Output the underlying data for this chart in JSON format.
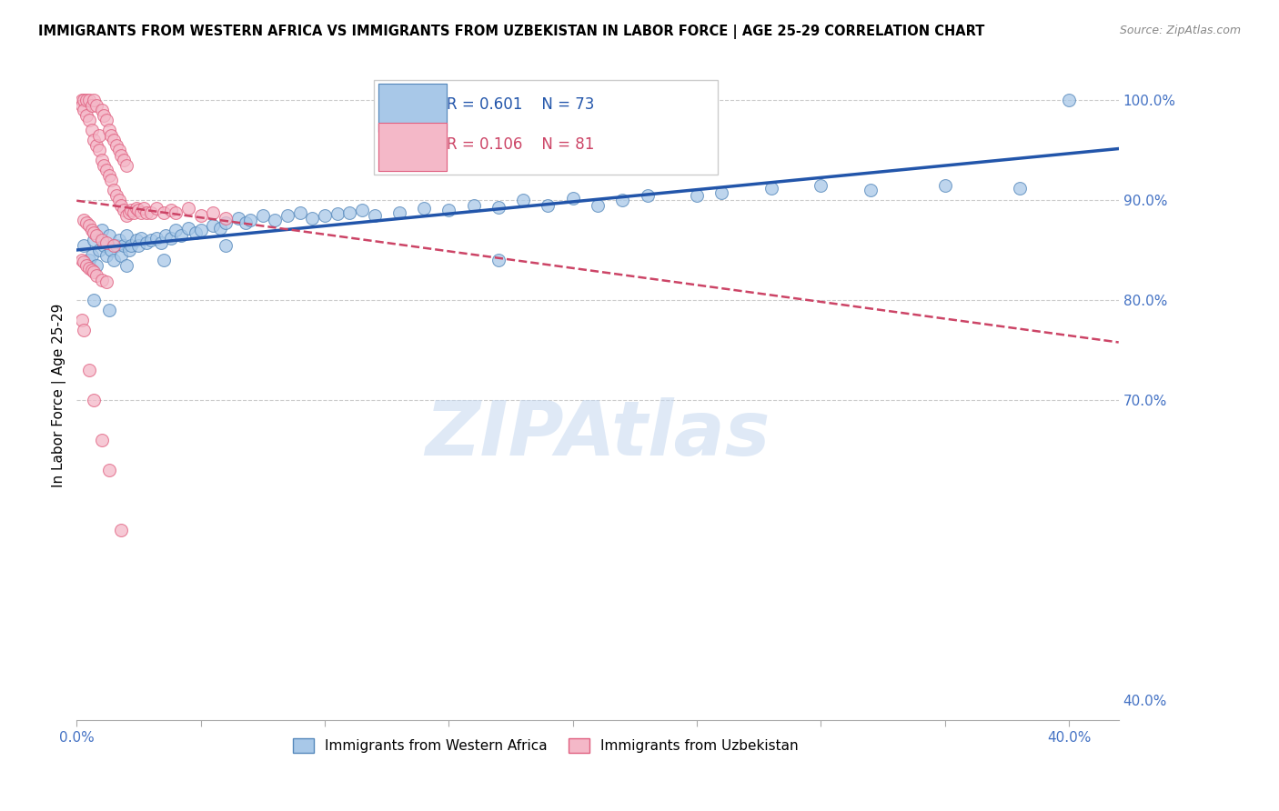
{
  "title": "IMMIGRANTS FROM WESTERN AFRICA VS IMMIGRANTS FROM UZBEKISTAN IN LABOR FORCE | AGE 25-29 CORRELATION CHART",
  "source": "Source: ZipAtlas.com",
  "ylabel": "In Labor Force | Age 25-29",
  "xlim": [
    0.0,
    0.42
  ],
  "ylim": [
    0.38,
    1.03
  ],
  "blue_color": "#a8c8e8",
  "pink_color": "#f4b8c8",
  "blue_edge_color": "#5588bb",
  "pink_edge_color": "#e06080",
  "blue_line_color": "#2255aa",
  "pink_line_color": "#cc4466",
  "tick_label_color": "#4472c4",
  "grid_color": "#cccccc",
  "watermark": "ZIPAtlas",
  "blue_scatter_x": [
    0.003,
    0.005,
    0.006,
    0.007,
    0.008,
    0.009,
    0.01,
    0.011,
    0.012,
    0.013,
    0.014,
    0.015,
    0.016,
    0.017,
    0.018,
    0.019,
    0.02,
    0.021,
    0.022,
    0.024,
    0.025,
    0.026,
    0.028,
    0.03,
    0.032,
    0.034,
    0.036,
    0.038,
    0.04,
    0.042,
    0.045,
    0.048,
    0.05,
    0.055,
    0.058,
    0.06,
    0.065,
    0.068,
    0.07,
    0.075,
    0.08,
    0.085,
    0.09,
    0.095,
    0.1,
    0.105,
    0.11,
    0.115,
    0.12,
    0.13,
    0.14,
    0.15,
    0.16,
    0.17,
    0.18,
    0.19,
    0.2,
    0.21,
    0.22,
    0.23,
    0.25,
    0.26,
    0.28,
    0.3,
    0.32,
    0.35,
    0.38,
    0.4,
    0.007,
    0.013,
    0.02,
    0.035,
    0.06,
    0.17
  ],
  "blue_scatter_y": [
    0.855,
    0.84,
    0.845,
    0.86,
    0.835,
    0.85,
    0.87,
    0.855,
    0.845,
    0.865,
    0.85,
    0.84,
    0.855,
    0.86,
    0.845,
    0.855,
    0.865,
    0.85,
    0.855,
    0.86,
    0.855,
    0.862,
    0.858,
    0.86,
    0.862,
    0.858,
    0.865,
    0.862,
    0.87,
    0.865,
    0.872,
    0.868,
    0.87,
    0.875,
    0.872,
    0.878,
    0.882,
    0.878,
    0.88,
    0.885,
    0.88,
    0.885,
    0.888,
    0.882,
    0.885,
    0.887,
    0.888,
    0.89,
    0.885,
    0.888,
    0.892,
    0.89,
    0.895,
    0.893,
    0.9,
    0.895,
    0.902,
    0.895,
    0.9,
    0.905,
    0.905,
    0.908,
    0.912,
    0.915,
    0.91,
    0.915,
    0.912,
    1.0,
    0.8,
    0.79,
    0.835,
    0.84,
    0.855,
    0.84
  ],
  "pink_scatter_x": [
    0.002,
    0.002,
    0.003,
    0.003,
    0.004,
    0.004,
    0.005,
    0.005,
    0.006,
    0.006,
    0.007,
    0.007,
    0.008,
    0.008,
    0.009,
    0.009,
    0.01,
    0.01,
    0.011,
    0.011,
    0.012,
    0.012,
    0.013,
    0.013,
    0.014,
    0.014,
    0.015,
    0.015,
    0.016,
    0.016,
    0.017,
    0.017,
    0.018,
    0.018,
    0.019,
    0.019,
    0.02,
    0.02,
    0.021,
    0.022,
    0.023,
    0.024,
    0.025,
    0.026,
    0.027,
    0.028,
    0.03,
    0.032,
    0.035,
    0.038,
    0.04,
    0.045,
    0.05,
    0.055,
    0.06,
    0.003,
    0.004,
    0.005,
    0.006,
    0.007,
    0.008,
    0.01,
    0.012,
    0.015,
    0.002,
    0.003,
    0.004,
    0.005,
    0.006,
    0.007,
    0.008,
    0.01,
    0.012,
    0.002,
    0.003,
    0.005,
    0.007,
    0.01,
    0.013,
    0.018
  ],
  "pink_scatter_y": [
    1.0,
    0.995,
    1.0,
    0.99,
    1.0,
    0.985,
    1.0,
    0.98,
    0.97,
    0.995,
    0.96,
    1.0,
    0.955,
    0.995,
    0.965,
    0.95,
    0.94,
    0.99,
    0.935,
    0.985,
    0.93,
    0.98,
    0.925,
    0.97,
    0.92,
    0.965,
    0.91,
    0.96,
    0.905,
    0.955,
    0.9,
    0.95,
    0.895,
    0.945,
    0.89,
    0.94,
    0.885,
    0.935,
    0.888,
    0.89,
    0.888,
    0.892,
    0.89,
    0.888,
    0.892,
    0.888,
    0.888,
    0.892,
    0.888,
    0.89,
    0.888,
    0.892,
    0.885,
    0.888,
    0.882,
    0.88,
    0.878,
    0.875,
    0.87,
    0.868,
    0.865,
    0.86,
    0.858,
    0.855,
    0.84,
    0.838,
    0.835,
    0.832,
    0.83,
    0.828,
    0.825,
    0.82,
    0.818,
    0.78,
    0.77,
    0.73,
    0.7,
    0.66,
    0.63,
    0.57
  ]
}
